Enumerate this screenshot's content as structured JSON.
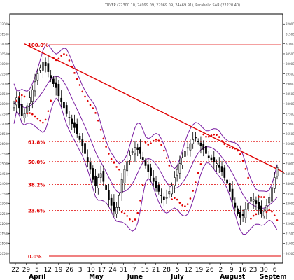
{
  "chart_data": {
    "type": "candlestick",
    "header_text": "TRVFP (22300.10, 24999.09, 22969.09, 24469.91), Parabolic SAR (22220.40)",
    "colors": {
      "candles": "#000000",
      "bollinger": "#7b1fa2",
      "parabolic_sar": "#e00000",
      "fibonacci": "#e00000",
      "trendline": "#e00000",
      "axis": "#000000"
    },
    "y_axis": {
      "min": 20000,
      "max": 32500,
      "ticks": [
        20500,
        21000,
        21500,
        22000,
        22500,
        23000,
        23500,
        24000,
        24500,
        25000,
        25500,
        26000,
        26500,
        27000,
        27500,
        28000,
        28500,
        29000,
        29500,
        30000,
        30500,
        31000,
        31500,
        32000
      ]
    },
    "x_axis": {
      "day_ticks": [
        "22",
        "29",
        "5",
        "12",
        "19",
        "26",
        "3",
        "10",
        "17",
        "24",
        "31",
        "7",
        "15",
        "21",
        "28",
        "5",
        "12",
        "19",
        "26",
        "2",
        "9",
        "16",
        "23",
        "30",
        "6"
      ],
      "month_labels": [
        "April",
        "May",
        "June",
        "July",
        "August",
        "Septem"
      ]
    },
    "fibonacci_levels": [
      {
        "label": "100.0%",
        "value": 30950
      },
      {
        "label": "61.8%",
        "value": 26100
      },
      {
        "label": "50.0%",
        "value": 25100
      },
      {
        "label": "38.2%",
        "value": 23950
      },
      {
        "label": "23.6%",
        "value": 22650
      },
      {
        "label": "0.0%",
        "value": 20350
      }
    ],
    "trendline": {
      "start": {
        "day": 4,
        "value": 31000
      },
      "end": {
        "day": 29,
        "value": 24700
      }
    },
    "ohlc_close": [
      28000,
      28300,
      27800,
      27400,
      27500,
      27900,
      28300,
      28700,
      29100,
      29500,
      29800,
      30100,
      29900,
      29600,
      29300,
      29000,
      28800,
      28400,
      28100,
      27800,
      27500,
      27300,
      27000,
      26800,
      26500,
      26200,
      25900,
      25500,
      25100,
      24700,
      24200,
      23900,
      24300,
      24500,
      24100,
      23700,
      23200,
      22900,
      22600,
      22800,
      23400,
      24200,
      24700,
      25100,
      25400,
      25600,
      25800,
      25700,
      25500,
      25200,
      24900,
      24600,
      24400,
      24100,
      23800,
      23600,
      23400,
      23200,
      23300,
      23600,
      23900,
      24300,
      24700,
      25000,
      25300,
      25600,
      25800,
      26000,
      26200,
      26300,
      26100,
      25900,
      25700,
      25500,
      25300,
      25200,
      25100,
      25000,
      24800,
      24600,
      24300,
      24000,
      23600,
      23200,
      22800,
      22500,
      22300,
      22400,
      22700,
      23000,
      23300,
      23200,
      23000,
      22700,
      22500,
      22600,
      22900,
      23300,
      23800,
      24300,
      24800
    ],
    "series_names": []
  }
}
